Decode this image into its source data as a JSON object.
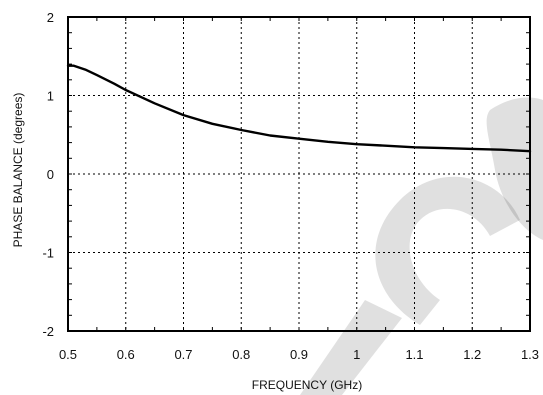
{
  "chart_data": {
    "type": "line",
    "xlabel": "FREQUENCY (GHz)",
    "ylabel": "PHASE BALANCE (degrees)",
    "xlim": [
      0.5,
      1.3
    ],
    "ylim": [
      -2,
      2
    ],
    "x_ticks": [
      "0.5",
      "0.6",
      "0.7",
      "0.8",
      "0.9",
      "1",
      "1.1",
      "1.2",
      "1.3"
    ],
    "y_ticks": [
      "-2",
      "-1",
      "0",
      "1",
      "2"
    ],
    "grid": true,
    "series": [
      {
        "name": "",
        "color": "#000000",
        "x": [
          0.5,
          0.51,
          0.53,
          0.55,
          0.58,
          0.6,
          0.65,
          0.7,
          0.75,
          0.8,
          0.85,
          0.9,
          0.95,
          1.0,
          1.05,
          1.1,
          1.15,
          1.2,
          1.25,
          1.3
        ],
        "y": [
          1.38,
          1.38,
          1.33,
          1.26,
          1.15,
          1.07,
          0.9,
          0.75,
          0.64,
          0.56,
          0.49,
          0.45,
          0.41,
          0.38,
          0.36,
          0.34,
          0.33,
          0.32,
          0.31,
          0.29
        ]
      }
    ]
  }
}
